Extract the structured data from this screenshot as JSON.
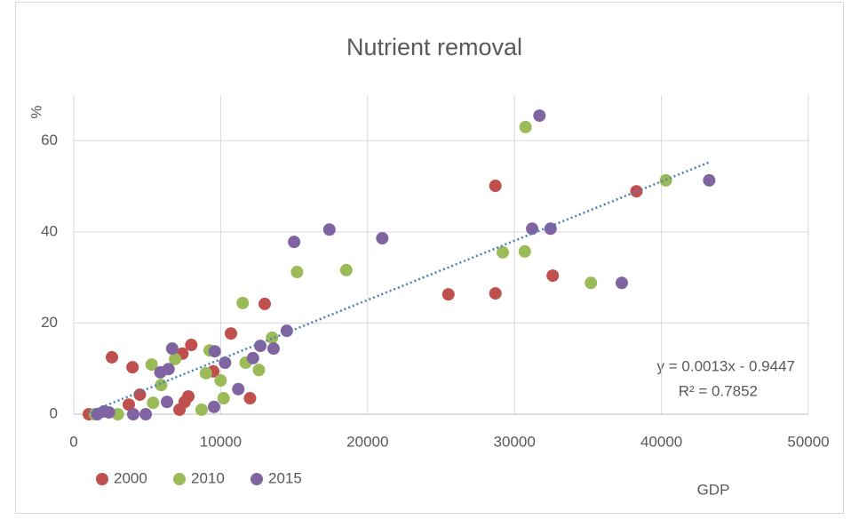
{
  "chart_data": {
    "type": "scatter",
    "title": "Nutrient removal",
    "x_label": "GDP",
    "y_label": "%",
    "xlim": [
      0,
      50000
    ],
    "xticks": [
      0,
      10000,
      20000,
      30000,
      40000,
      50000
    ],
    "ylim": [
      0,
      70
    ],
    "yticks": [
      0,
      20,
      40,
      60
    ],
    "grid": true,
    "legend": "bottom-left",
    "series": [
      {
        "name": "2000",
        "color": "#c0504d",
        "x": [
          1030,
          2600,
          4000,
          4500,
          3750,
          7400,
          8000,
          9500,
          7800,
          7550,
          7200,
          10700,
          12000,
          13000,
          25500,
          28700,
          28700,
          32600,
          38300
        ],
        "y": [
          0,
          12.5,
          10.3,
          4.3,
          2.1,
          13.3,
          15.2,
          9.4,
          3.9,
          2.7,
          1.0,
          17.7,
          3.5,
          24.2,
          26.3,
          26.5,
          50.1,
          30.4,
          48.9
        ]
      },
      {
        "name": "2010",
        "color": "#9bbb59",
        "x": [
          1450,
          3000,
          5300,
          5950,
          5400,
          6900,
          8700,
          9250,
          9000,
          10200,
          10000,
          11500,
          11700,
          12600,
          13500,
          15200,
          18550,
          29200,
          30700,
          30750,
          35200,
          40300
        ],
        "y": [
          0,
          0,
          10.9,
          6.4,
          2.5,
          12.1,
          1.0,
          14.0,
          9.0,
          3.5,
          7.4,
          24.4,
          11.3,
          9.7,
          16.8,
          31.2,
          31.6,
          35.5,
          35.7,
          63.0,
          28.8,
          51.3
        ]
      },
      {
        "name": "2015",
        "color": "#8064a2",
        "x": [
          1600,
          2050,
          2400,
          4050,
          4900,
          5900,
          6450,
          6700,
          6350,
          9600,
          9550,
          10300,
          11200,
          12200,
          12700,
          13600,
          14500,
          15000,
          17400,
          21000,
          31200,
          31700,
          32450,
          37300,
          43250
        ],
        "y": [
          0,
          0.6,
          0.4,
          0,
          0,
          9.2,
          9.9,
          14.4,
          2.7,
          13.8,
          1.6,
          11.3,
          5.5,
          12.3,
          15.0,
          14.4,
          18.3,
          37.8,
          40.5,
          38.6,
          40.7,
          65.5,
          40.7,
          28.8,
          51.3
        ]
      }
    ],
    "trendline": {
      "slope": 0.0013,
      "intercept": -0.9447,
      "color": "#4a7ebb",
      "equation": "y = 0.0013x - 0.9447",
      "r_squared": "R² = 0.7852"
    }
  }
}
